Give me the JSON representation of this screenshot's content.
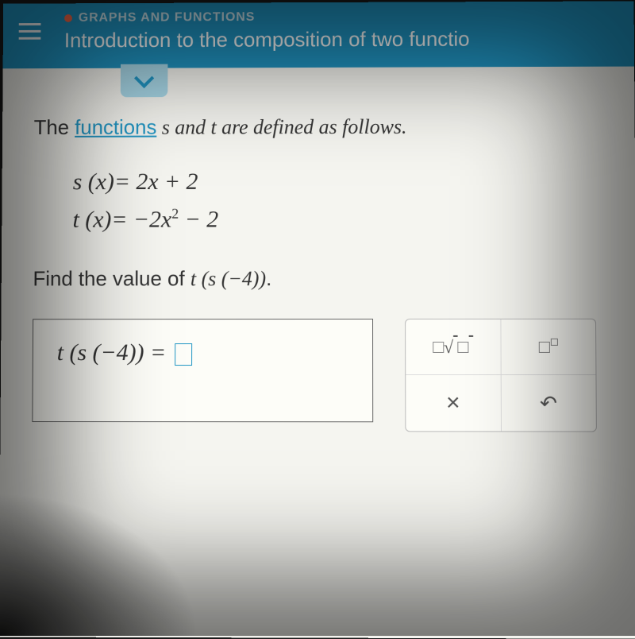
{
  "header": {
    "category": "GRAPHS AND FUNCTIONS",
    "title": "Introduction to the composition of two functio",
    "colors": {
      "bg": "#2196c4",
      "dot": "#ff6b4a",
      "text": "#ffffff",
      "category": "#d0e8f0"
    }
  },
  "content": {
    "intro_pre": "The ",
    "intro_link": "functions",
    "intro_post": " s and t are defined as follows.",
    "eq1_lhs": "s (x)",
    "eq1_rhs": "= 2x + 2",
    "eq2_lhs": "t (x)",
    "eq2_rhs_pre": "= −2x",
    "eq2_sup": "2",
    "eq2_rhs_post": " − 2",
    "prompt_pre": "Find the value of ",
    "prompt_math": "t (s (−4))",
    "prompt_post": ".",
    "answer_lhs": "t (s (−4))",
    "answer_eq": " = "
  },
  "tools": {
    "close": "×",
    "undo": "↶"
  },
  "colors": {
    "page_bg": "#f5f5f0",
    "text": "#333333",
    "link": "#2196c4",
    "border": "#666666",
    "input_border": "#2196c4",
    "panel_border": "#bbbbbb"
  }
}
